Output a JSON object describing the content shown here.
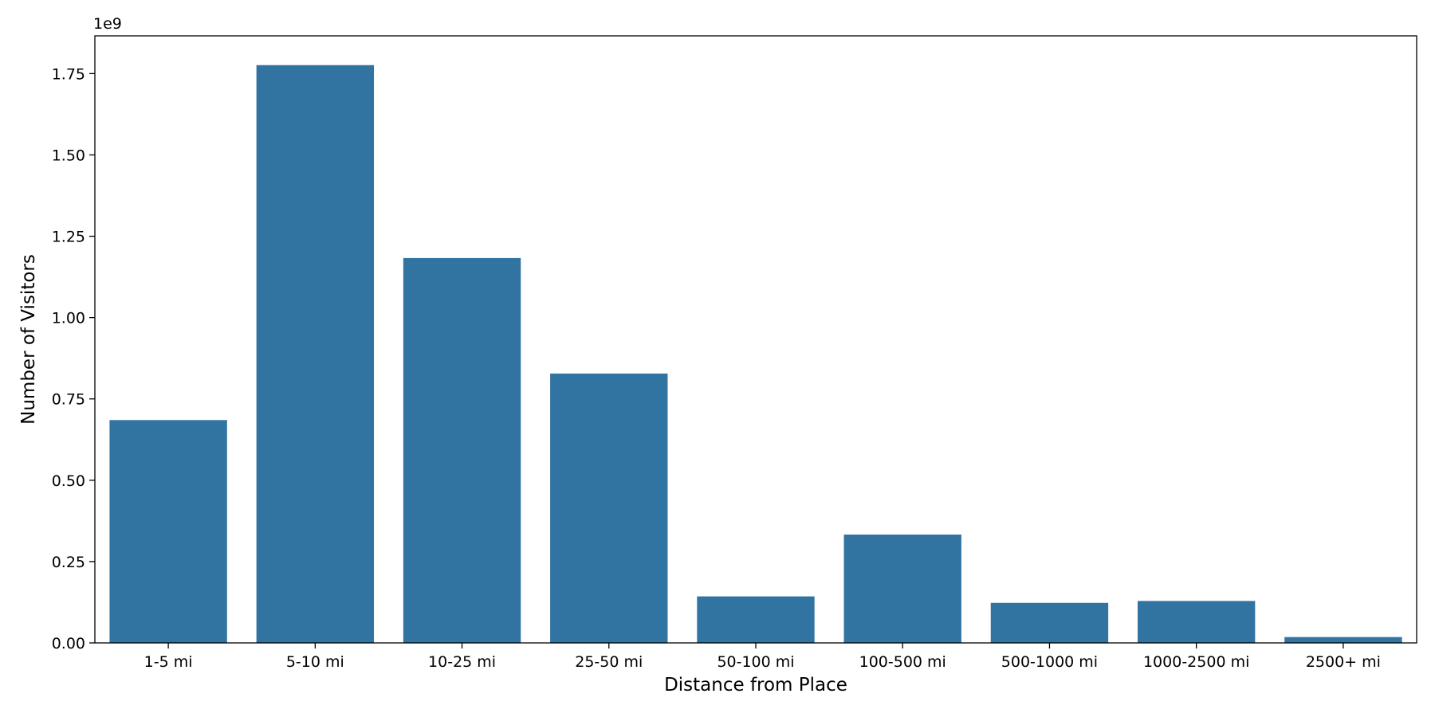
{
  "chart_data": {
    "type": "bar",
    "title": "",
    "xlabel": "Distance from Place",
    "ylabel": "Number of Visitors",
    "y_offset_label": "1e9",
    "y_scale": 1000000000,
    "categories": [
      "1-5 mi",
      "5-10 mi",
      "10-25 mi",
      "25-50 mi",
      "50-100 mi",
      "100-500 mi",
      "500-1000 mi",
      "1000-2500 mi",
      "2500+ mi"
    ],
    "values": [
      685000000,
      1776000000,
      1183000000,
      828000000,
      143000000,
      333000000,
      123000000,
      129000000,
      18000000
    ],
    "ylim": [
      0,
      1866000000
    ],
    "yticks": [
      0,
      250000000,
      500000000,
      750000000,
      1000000000,
      1250000000,
      1500000000,
      1750000000
    ],
    "ytick_labels": [
      "0.00",
      "0.25",
      "0.50",
      "0.75",
      "1.00",
      "1.25",
      "1.50",
      "1.75"
    ],
    "bar_color": "#3274a1",
    "grid": false,
    "legend": "none"
  }
}
